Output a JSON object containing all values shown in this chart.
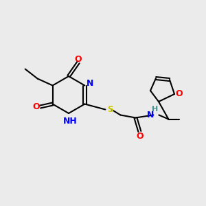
{
  "bg_color": "#ebebeb",
  "bond_color": "#000000",
  "bond_lw": 1.5,
  "atom_colors": {
    "N": "#0000ff",
    "O": "#ff0000",
    "S": "#cccc00",
    "H": "#4a9090",
    "C": "#000000"
  },
  "font_size": 9,
  "font_size_small": 8
}
